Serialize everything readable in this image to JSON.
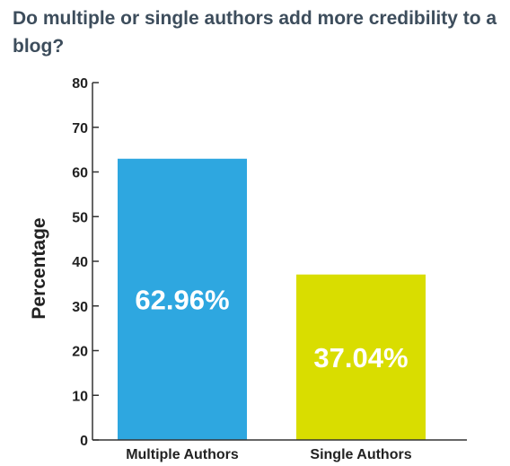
{
  "chart_data": {
    "type": "bar",
    "title": "Do multiple or single authors add more credibility to a blog?",
    "xlabel": "",
    "ylabel": "Percentage",
    "ylim": [
      0,
      80
    ],
    "yticks": [
      0,
      10,
      20,
      30,
      40,
      50,
      60,
      70,
      80
    ],
    "categories": [
      "Multiple Authors",
      "Single Authors"
    ],
    "values": [
      62.96,
      37.04
    ],
    "data_labels": [
      "62.96%",
      "37.04%"
    ],
    "colors": [
      "#2ea7e0",
      "#d9dd00"
    ],
    "grid": false,
    "legend": "none"
  }
}
